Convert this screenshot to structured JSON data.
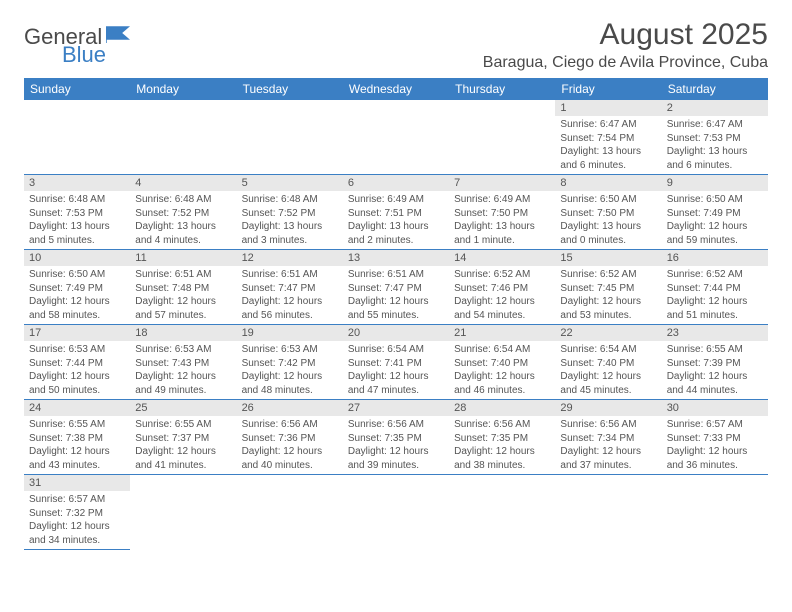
{
  "logo": {
    "general": "General",
    "blue": "Blue"
  },
  "header": {
    "month_title": "August 2025",
    "location": "Baragua, Ciego de Avila Province, Cuba"
  },
  "weekdays": [
    "Sunday",
    "Monday",
    "Tuesday",
    "Wednesday",
    "Thursday",
    "Friday",
    "Saturday"
  ],
  "style": {
    "header_bg": "#3b7fc4",
    "header_text": "#ffffff",
    "day_num_bg": "#e8e8e8",
    "border_color": "#3b7fc4",
    "text_color": "#555555"
  },
  "weeks": [
    [
      null,
      null,
      null,
      null,
      null,
      {
        "num": "1",
        "sunrise": "Sunrise: 6:47 AM",
        "sunset": "Sunset: 7:54 PM",
        "daylight": "Daylight: 13 hours and 6 minutes."
      },
      {
        "num": "2",
        "sunrise": "Sunrise: 6:47 AM",
        "sunset": "Sunset: 7:53 PM",
        "daylight": "Daylight: 13 hours and 6 minutes."
      }
    ],
    [
      {
        "num": "3",
        "sunrise": "Sunrise: 6:48 AM",
        "sunset": "Sunset: 7:53 PM",
        "daylight": "Daylight: 13 hours and 5 minutes."
      },
      {
        "num": "4",
        "sunrise": "Sunrise: 6:48 AM",
        "sunset": "Sunset: 7:52 PM",
        "daylight": "Daylight: 13 hours and 4 minutes."
      },
      {
        "num": "5",
        "sunrise": "Sunrise: 6:48 AM",
        "sunset": "Sunset: 7:52 PM",
        "daylight": "Daylight: 13 hours and 3 minutes."
      },
      {
        "num": "6",
        "sunrise": "Sunrise: 6:49 AM",
        "sunset": "Sunset: 7:51 PM",
        "daylight": "Daylight: 13 hours and 2 minutes."
      },
      {
        "num": "7",
        "sunrise": "Sunrise: 6:49 AM",
        "sunset": "Sunset: 7:50 PM",
        "daylight": "Daylight: 13 hours and 1 minute."
      },
      {
        "num": "8",
        "sunrise": "Sunrise: 6:50 AM",
        "sunset": "Sunset: 7:50 PM",
        "daylight": "Daylight: 13 hours and 0 minutes."
      },
      {
        "num": "9",
        "sunrise": "Sunrise: 6:50 AM",
        "sunset": "Sunset: 7:49 PM",
        "daylight": "Daylight: 12 hours and 59 minutes."
      }
    ],
    [
      {
        "num": "10",
        "sunrise": "Sunrise: 6:50 AM",
        "sunset": "Sunset: 7:49 PM",
        "daylight": "Daylight: 12 hours and 58 minutes."
      },
      {
        "num": "11",
        "sunrise": "Sunrise: 6:51 AM",
        "sunset": "Sunset: 7:48 PM",
        "daylight": "Daylight: 12 hours and 57 minutes."
      },
      {
        "num": "12",
        "sunrise": "Sunrise: 6:51 AM",
        "sunset": "Sunset: 7:47 PM",
        "daylight": "Daylight: 12 hours and 56 minutes."
      },
      {
        "num": "13",
        "sunrise": "Sunrise: 6:51 AM",
        "sunset": "Sunset: 7:47 PM",
        "daylight": "Daylight: 12 hours and 55 minutes."
      },
      {
        "num": "14",
        "sunrise": "Sunrise: 6:52 AM",
        "sunset": "Sunset: 7:46 PM",
        "daylight": "Daylight: 12 hours and 54 minutes."
      },
      {
        "num": "15",
        "sunrise": "Sunrise: 6:52 AM",
        "sunset": "Sunset: 7:45 PM",
        "daylight": "Daylight: 12 hours and 53 minutes."
      },
      {
        "num": "16",
        "sunrise": "Sunrise: 6:52 AM",
        "sunset": "Sunset: 7:44 PM",
        "daylight": "Daylight: 12 hours and 51 minutes."
      }
    ],
    [
      {
        "num": "17",
        "sunrise": "Sunrise: 6:53 AM",
        "sunset": "Sunset: 7:44 PM",
        "daylight": "Daylight: 12 hours and 50 minutes."
      },
      {
        "num": "18",
        "sunrise": "Sunrise: 6:53 AM",
        "sunset": "Sunset: 7:43 PM",
        "daylight": "Daylight: 12 hours and 49 minutes."
      },
      {
        "num": "19",
        "sunrise": "Sunrise: 6:53 AM",
        "sunset": "Sunset: 7:42 PM",
        "daylight": "Daylight: 12 hours and 48 minutes."
      },
      {
        "num": "20",
        "sunrise": "Sunrise: 6:54 AM",
        "sunset": "Sunset: 7:41 PM",
        "daylight": "Daylight: 12 hours and 47 minutes."
      },
      {
        "num": "21",
        "sunrise": "Sunrise: 6:54 AM",
        "sunset": "Sunset: 7:40 PM",
        "daylight": "Daylight: 12 hours and 46 minutes."
      },
      {
        "num": "22",
        "sunrise": "Sunrise: 6:54 AM",
        "sunset": "Sunset: 7:40 PM",
        "daylight": "Daylight: 12 hours and 45 minutes."
      },
      {
        "num": "23",
        "sunrise": "Sunrise: 6:55 AM",
        "sunset": "Sunset: 7:39 PM",
        "daylight": "Daylight: 12 hours and 44 minutes."
      }
    ],
    [
      {
        "num": "24",
        "sunrise": "Sunrise: 6:55 AM",
        "sunset": "Sunset: 7:38 PM",
        "daylight": "Daylight: 12 hours and 43 minutes."
      },
      {
        "num": "25",
        "sunrise": "Sunrise: 6:55 AM",
        "sunset": "Sunset: 7:37 PM",
        "daylight": "Daylight: 12 hours and 41 minutes."
      },
      {
        "num": "26",
        "sunrise": "Sunrise: 6:56 AM",
        "sunset": "Sunset: 7:36 PM",
        "daylight": "Daylight: 12 hours and 40 minutes."
      },
      {
        "num": "27",
        "sunrise": "Sunrise: 6:56 AM",
        "sunset": "Sunset: 7:35 PM",
        "daylight": "Daylight: 12 hours and 39 minutes."
      },
      {
        "num": "28",
        "sunrise": "Sunrise: 6:56 AM",
        "sunset": "Sunset: 7:35 PM",
        "daylight": "Daylight: 12 hours and 38 minutes."
      },
      {
        "num": "29",
        "sunrise": "Sunrise: 6:56 AM",
        "sunset": "Sunset: 7:34 PM",
        "daylight": "Daylight: 12 hours and 37 minutes."
      },
      {
        "num": "30",
        "sunrise": "Sunrise: 6:57 AM",
        "sunset": "Sunset: 7:33 PM",
        "daylight": "Daylight: 12 hours and 36 minutes."
      }
    ],
    [
      {
        "num": "31",
        "sunrise": "Sunrise: 6:57 AM",
        "sunset": "Sunset: 7:32 PM",
        "daylight": "Daylight: 12 hours and 34 minutes."
      },
      null,
      null,
      null,
      null,
      null,
      null
    ]
  ]
}
